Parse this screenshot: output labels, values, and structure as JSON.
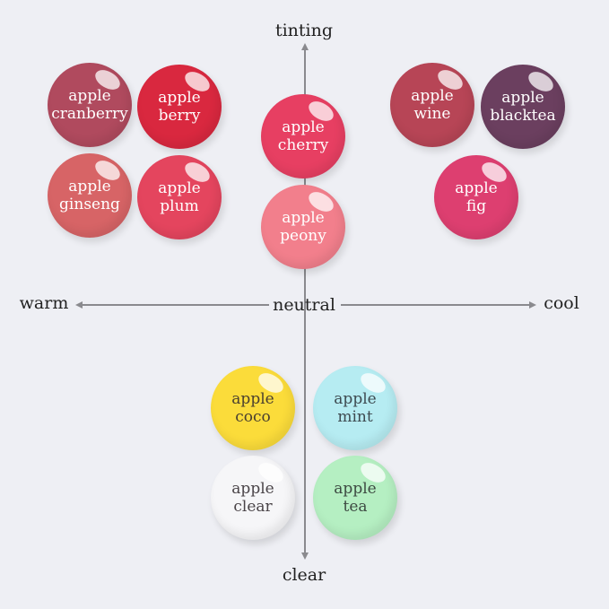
{
  "axes": {
    "top": "tinting",
    "bottom": "clear",
    "left": "warm",
    "right": "cool",
    "center": "neutral"
  },
  "shades": [
    {
      "id": "cranberry",
      "line1": "apple",
      "line2": "cranberry",
      "color": "#b04a5e",
      "text": "#ffffff"
    },
    {
      "id": "berry",
      "line1": "apple",
      "line2": "berry",
      "color": "#d9283f",
      "text": "#ffffff"
    },
    {
      "id": "ginseng",
      "line1": "apple",
      "line2": "ginseng",
      "color": "#d76466",
      "text": "#ffffff"
    },
    {
      "id": "plum",
      "line1": "apple",
      "line2": "plum",
      "color": "#e4455e",
      "text": "#ffffff"
    },
    {
      "id": "cherry",
      "line1": "apple",
      "line2": "cherry",
      "color": "#e73f62",
      "text": "#ffffff"
    },
    {
      "id": "peony",
      "line1": "apple",
      "line2": "peony",
      "color": "#f27f8c",
      "text": "#ffffff"
    },
    {
      "id": "wine",
      "line1": "apple",
      "line2": "wine",
      "color": "#b74556",
      "text": "#ffffff"
    },
    {
      "id": "blacktea",
      "line1": "apple",
      "line2": "blacktea",
      "color": "#6b3f5f",
      "text": "#ffffff"
    },
    {
      "id": "fig",
      "line1": "apple",
      "line2": "fig",
      "color": "#dd3f70",
      "text": "#ffffff"
    },
    {
      "id": "coco",
      "line1": "apple",
      "line2": "coco",
      "color": "#fbdc3a",
      "text": "#4a4030"
    },
    {
      "id": "mint",
      "line1": "apple",
      "line2": "mint",
      "color": "#b6ecf2",
      "text": "#3d4a50"
    },
    {
      "id": "clear",
      "line1": "apple",
      "line2": "clear",
      "color": "#f6f6f8",
      "text": "#4a4448"
    },
    {
      "id": "tea",
      "line1": "apple",
      "line2": "tea",
      "color": "#b5efc2",
      "text": "#3d4a42"
    }
  ]
}
